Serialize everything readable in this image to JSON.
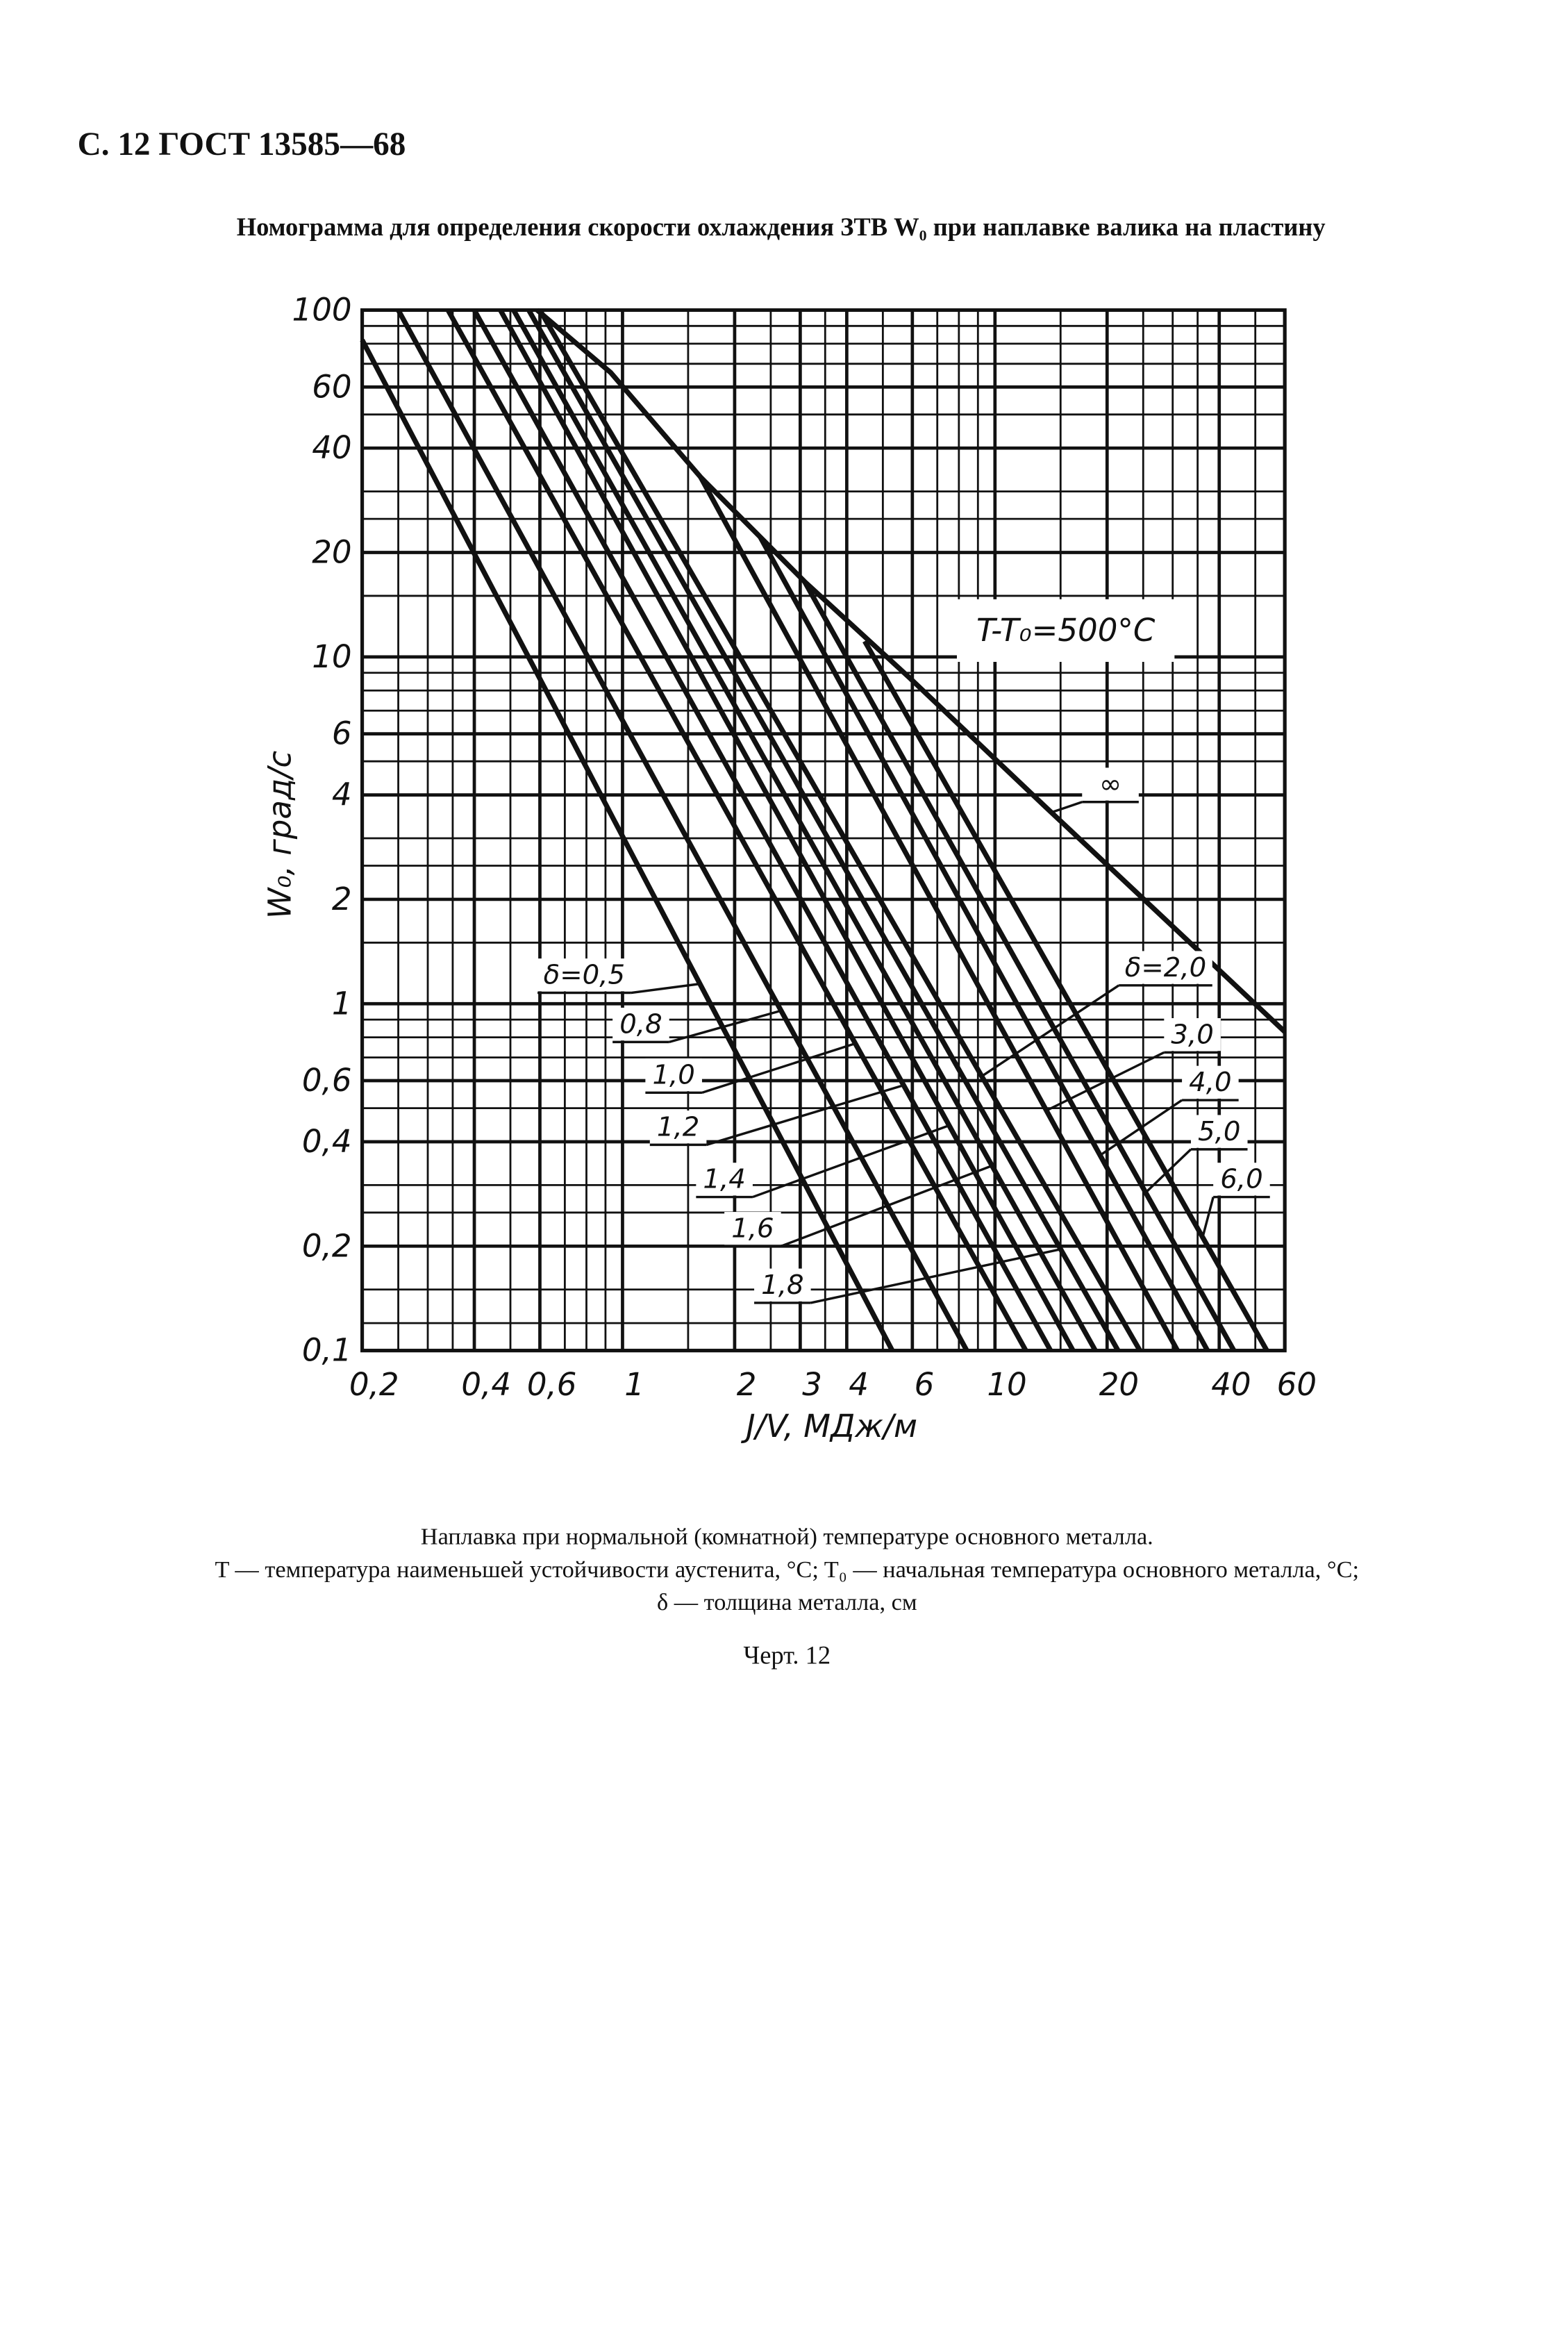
{
  "header": {
    "page_ref": "С. 12 ГОСТ 13585—68"
  },
  "chart_data": {
    "type": "line",
    "title": "Номограмма для определения скорости охлаждения ЗТВ W₀ при наплавке валика на пластину",
    "x_label": "J/V, МДж/м",
    "y_label": "W₀, град/с",
    "annotation": "T-T₀=500°C",
    "x_log": true,
    "y_log": true,
    "color": "#111111",
    "grid": true,
    "xlim": [
      0.2,
      60
    ],
    "ylim": [
      0.1,
      100
    ],
    "xticks": [
      {
        "value": 0.2,
        "label": "0,2"
      },
      {
        "value": 0.4,
        "label": "0,4"
      },
      {
        "value": 0.6,
        "label": "0,6"
      },
      1,
      2,
      3,
      4,
      6,
      10,
      20,
      40,
      60
    ],
    "yticks": [
      {
        "value": 0.1,
        "label": "0,1"
      },
      {
        "value": 0.2,
        "label": "0,2"
      },
      {
        "value": 0.4,
        "label": "0,4"
      },
      {
        "value": 0.6,
        "label": "0,6"
      },
      1,
      2,
      4,
      6,
      10,
      20,
      40,
      60,
      100
    ],
    "xgrid": [
      0.25,
      0.3,
      0.35,
      0.5,
      0.7,
      0.8,
      0.9,
      1.5,
      2.5,
      3.5,
      5,
      7,
      8,
      9,
      15,
      25,
      30,
      35,
      50
    ],
    "ygrid": [
      0.12,
      0.15,
      0.25,
      0.3,
      0.5,
      0.7,
      0.8,
      0.9,
      1.5,
      2.5,
      3,
      5,
      7,
      8,
      9,
      15,
      25,
      30,
      50,
      70,
      80,
      90
    ],
    "series": [
      {
        "name": "δ=0,5",
        "x": [
          0.2,
          5.3
        ],
        "values": [
          82,
          0.1
        ]
      },
      {
        "name": "0,8",
        "x": [
          0.25,
          8.4
        ],
        "values": [
          100,
          0.1
        ]
      },
      {
        "name": "1,0",
        "x": [
          0.34,
          12.1
        ],
        "values": [
          100,
          0.1
        ]
      },
      {
        "name": "1,2",
        "x": [
          0.4,
          14.1
        ],
        "values": [
          100,
          0.1
        ]
      },
      {
        "name": "1,4",
        "x": [
          0.47,
          16.2
        ],
        "values": [
          100,
          0.1
        ]
      },
      {
        "name": "1,6",
        "x": [
          0.51,
          18.6
        ],
        "values": [
          100,
          0.1
        ]
      },
      {
        "name": "1,8",
        "x": [
          0.56,
          21.4
        ],
        "values": [
          100,
          0.1
        ]
      },
      {
        "name": "δ=2,0",
        "x": [
          0.6,
          24.5
        ],
        "values": [
          100,
          0.1
        ]
      },
      {
        "name": "3,0",
        "x": [
          1.62,
          30.9
        ],
        "values": [
          33,
          0.1
        ]
      },
      {
        "name": "4,0",
        "x": [
          2.34,
          37.2
        ],
        "values": [
          22.2,
          0.1
        ]
      },
      {
        "name": "5,0",
        "x": [
          3.08,
          43.8
        ],
        "values": [
          16.5,
          0.1
        ]
      },
      {
        "name": "6,0",
        "x": [
          4.47,
          53.7
        ],
        "values": [
          11.1,
          0.1
        ]
      },
      {
        "name": "∞",
        "x": [
          0.59,
          0.93,
          1.62,
          3.08,
          5.9,
          13.5,
          60
        ],
        "values": [
          100,
          66,
          33,
          16.5,
          8.7,
          3.74,
          0.83
        ]
      }
    ]
  },
  "notes": [
    "Наплавка при нормальной (комнатной) температуре основного металла.",
    "T — температура наименьшей устойчивости аустенита, °C; T₀ — начальная температура основного металла, °C;",
    "δ — толщина металла, см"
  ],
  "figure_label": "Черт. 12"
}
